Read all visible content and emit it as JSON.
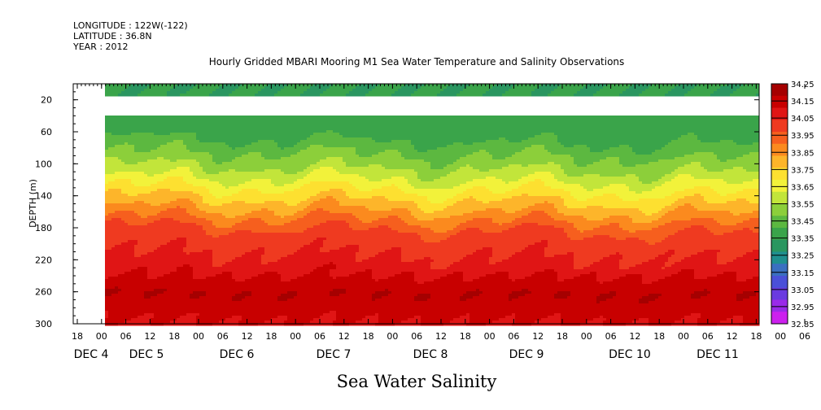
{
  "header": {
    "longitude": "LONGITUDE : 122W(-122)",
    "latitude": "LATITUDE : 36.8N",
    "year": "YEAR : 2012"
  },
  "chart_data": {
    "type": "heatmap",
    "title": "Hourly Gridded MBARI Mooring M1 Sea Water Temperature and Salinity Observations",
    "xlabel": "Sea Water Salinity",
    "ylabel": "DEPTH (m)",
    "y_ticks": [
      "20",
      "60",
      "100",
      "140",
      "180",
      "220",
      "260",
      "300"
    ],
    "ylim": [
      300,
      0
    ],
    "x_hour_ticks": [
      "18",
      "00",
      "06",
      "12",
      "18",
      "00",
      "06",
      "12",
      "18",
      "00",
      "06",
      "12",
      "18",
      "00",
      "06",
      "12",
      "18",
      "00",
      "06",
      "12",
      "18",
      "00",
      "06",
      "12",
      "18",
      "00",
      "06",
      "12",
      "18",
      "00",
      "06",
      "12",
      "18"
    ],
    "x_day_labels": [
      "DEC 4",
      "DEC 5",
      "DEC 6",
      "DEC 7",
      "DEC 8",
      "DEC 9",
      "DEC 10",
      "DEC 11"
    ],
    "colorbar": {
      "levels": [
        "34.25",
        "34.15",
        "34.05",
        "33.95",
        "33.85",
        "33.75",
        "33.65",
        "33.55",
        "33.45",
        "33.35",
        "33.25",
        "33.15",
        "33.05",
        "32.95",
        "32.85"
      ],
      "colors": [
        "#a50000",
        "#c80000",
        "#e01515",
        "#ef3a20",
        "#f65f1e",
        "#fb8a1e",
        "#fdb52a",
        "#fde030",
        "#f2f23a",
        "#c2e53a",
        "#8ccf3a",
        "#5cb840",
        "#3aa44a",
        "#2a9660",
        "#1f8f8f",
        "#3a6fc0",
        "#4a50d8",
        "#6a3ae0",
        "#9a2ae8",
        "#cc20ee"
      ]
    },
    "profile": [
      {
        "depth": 10,
        "salinity": 33.33
      },
      {
        "depth": 60,
        "salinity": 33.38
      },
      {
        "depth": 100,
        "salinity": 33.55
      },
      {
        "depth": 140,
        "salinity": 33.78
      },
      {
        "depth": 180,
        "salinity": 34.02
      },
      {
        "depth": 220,
        "salinity": 34.1
      },
      {
        "depth": 260,
        "salinity": 34.22
      },
      {
        "depth": 300,
        "salinity": 34.14
      }
    ],
    "data_gap_depth": [
      14,
      38
    ]
  }
}
